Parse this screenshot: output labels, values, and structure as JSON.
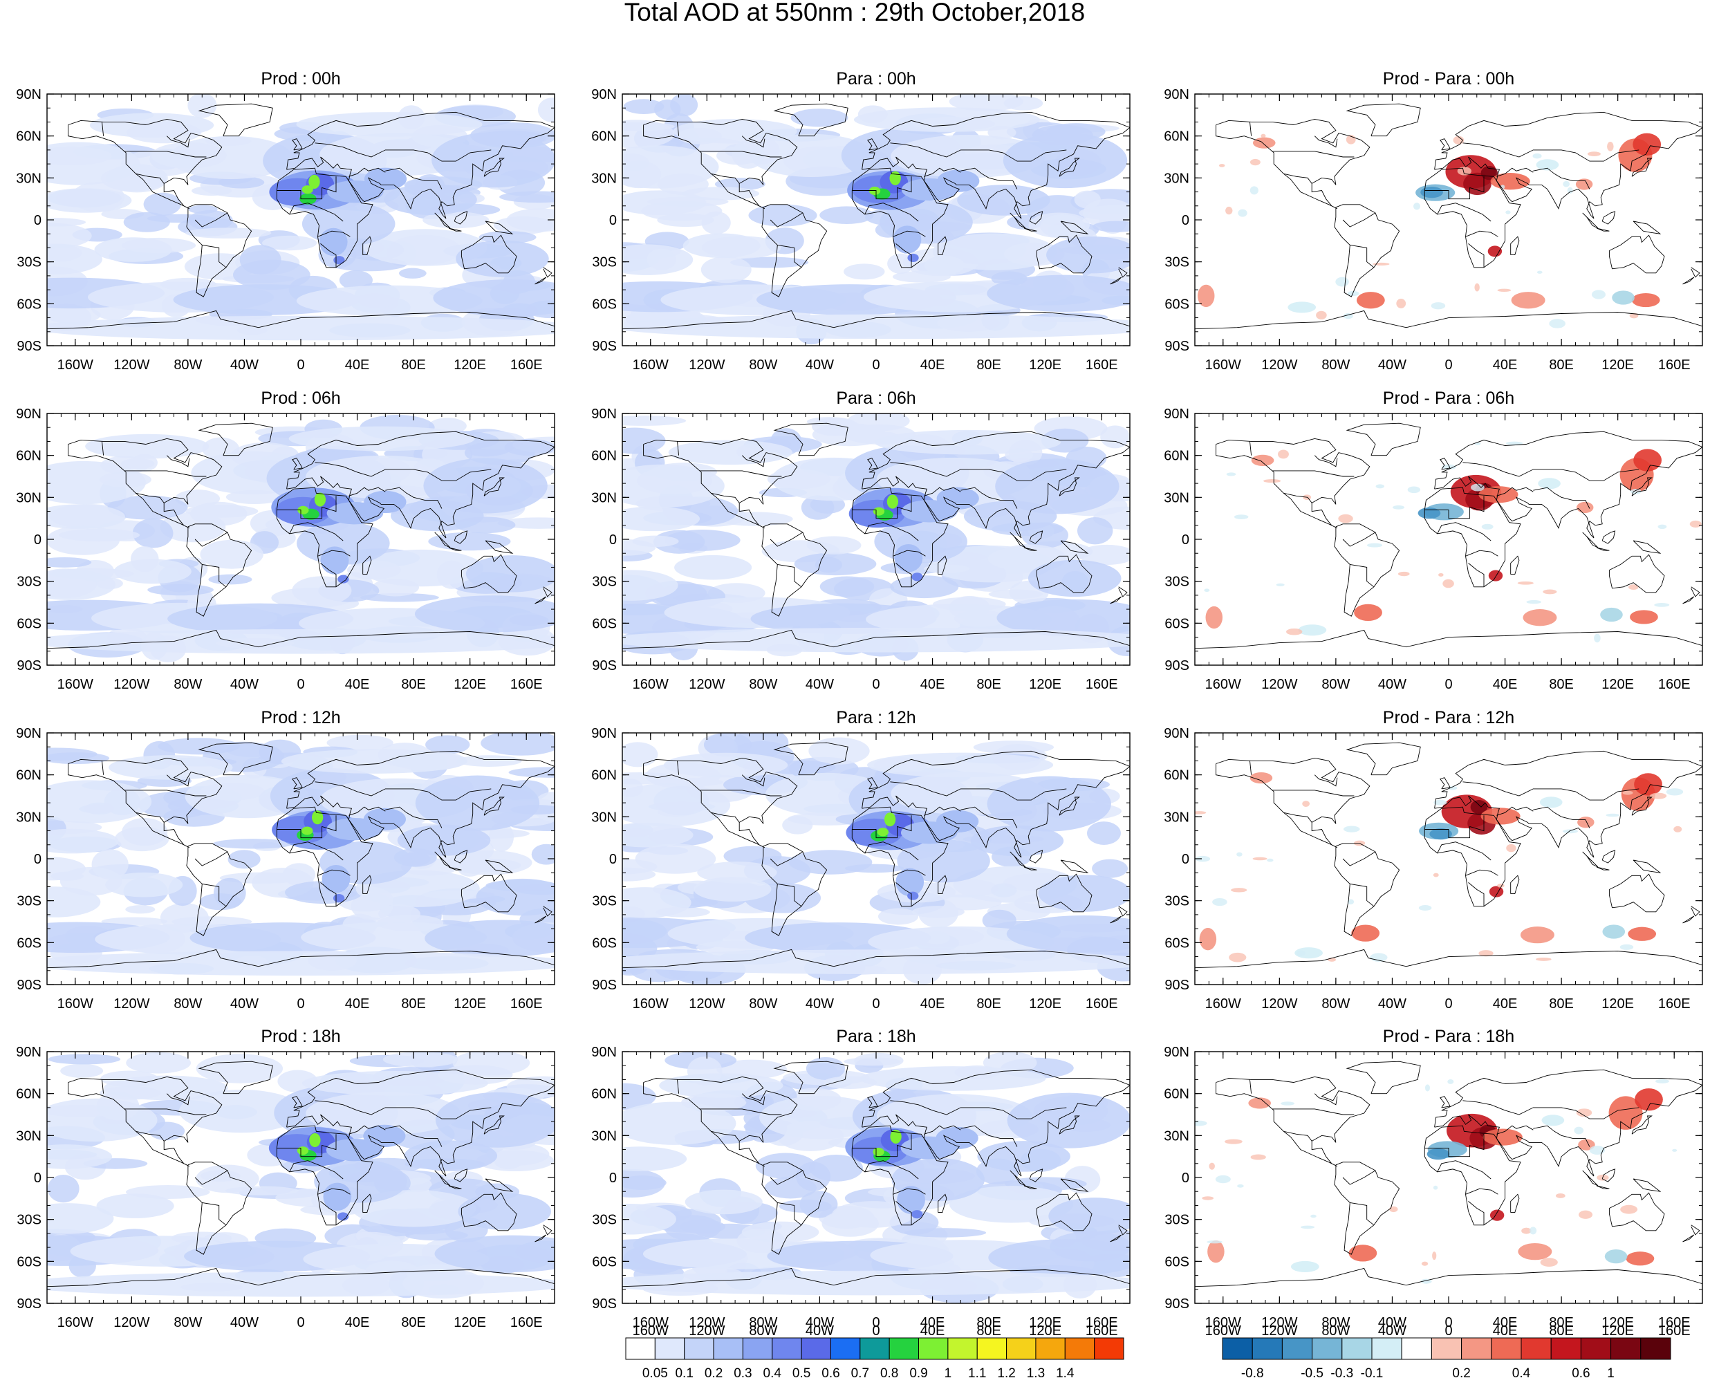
{
  "title": "Total AOD at 550nm : 29th October,2018",
  "columns": [
    "Prod",
    "Para",
    "Prod - Para"
  ],
  "panels": [
    {
      "title": "Prod : 00h",
      "kind": "aod",
      "seed": 11
    },
    {
      "title": "Para : 00h",
      "kind": "aod",
      "seed": 12
    },
    {
      "title": "Prod - Para : 00h",
      "kind": "diff",
      "seed": 13
    },
    {
      "title": "Prod : 06h",
      "kind": "aod",
      "seed": 21
    },
    {
      "title": "Para : 06h",
      "kind": "aod",
      "seed": 22
    },
    {
      "title": "Prod - Para : 06h",
      "kind": "diff",
      "seed": 23
    },
    {
      "title": "Prod : 12h",
      "kind": "aod",
      "seed": 31
    },
    {
      "title": "Para : 12h",
      "kind": "aod",
      "seed": 32
    },
    {
      "title": "Prod - Para : 12h",
      "kind": "diff",
      "seed": 33
    },
    {
      "title": "Prod : 18h",
      "kind": "aod",
      "seed": 41
    },
    {
      "title": "Para : 18h",
      "kind": "aod",
      "seed": 42
    },
    {
      "title": "Prod - Para : 18h",
      "kind": "diff",
      "seed": 43
    }
  ],
  "lat_ticks": [
    "90N",
    "60N",
    "30N",
    "0",
    "30S",
    "60S",
    "90S"
  ],
  "lon_ticks": [
    "160W",
    "120W",
    "80W",
    "40W",
    "0",
    "40E",
    "80E",
    "120E",
    "160E"
  ],
  "aod_colorbar": {
    "labels": [
      "0.05",
      "0.1",
      "0.2",
      "0.3",
      "0.4",
      "0.5",
      "0.6",
      "0.7",
      "0.8",
      "0.9",
      "1",
      "1.1",
      "1.2",
      "1.3",
      "1.4"
    ],
    "colors": [
      "#ffffff",
      "#dfe8fc",
      "#c4d4f9",
      "#a8bff6",
      "#8aa4f2",
      "#6f86ee",
      "#5a6ae8",
      "#1b6ef3",
      "#0e9a9a",
      "#25d23f",
      "#7df033",
      "#c3f52d",
      "#f5f520",
      "#f5d11a",
      "#f5a70d",
      "#f47a08",
      "#f33a05"
    ]
  },
  "diff_colorbar": {
    "labels": [
      "-0.8",
      "-0.5",
      "-0.3",
      "-0.1",
      "0.2",
      "0.4",
      "0.6",
      "1"
    ],
    "colors": [
      "#0c5fa6",
      "#2579b8",
      "#4795c6",
      "#76b5d6",
      "#a8d6e6",
      "#d4eef6",
      "#ffffff",
      "#f9c2b3",
      "#f49784",
      "#ee6a55",
      "#e1392f",
      "#c4161e",
      "#a10d18",
      "#7a0612",
      "#5a020b"
    ]
  },
  "overlay_labels": {
    "mid": [
      "160W",
      "120W",
      "80W",
      "40W",
      "0",
      "40E",
      "80E",
      "120E",
      "160E"
    ],
    "right": [
      "160W",
      "120W",
      "80W",
      "40W",
      "0",
      "40E",
      "80E",
      "120E",
      "160E"
    ]
  }
}
